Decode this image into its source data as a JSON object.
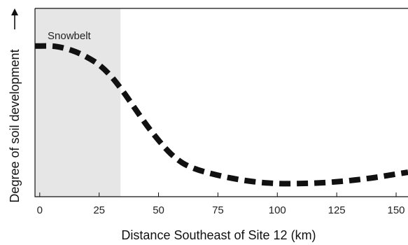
{
  "chart_data": {
    "type": "line",
    "title": "",
    "xlabel": "Distance Southeast of Site 12 (km)",
    "ylabel": "Degree of soil development",
    "xlim": [
      -2,
      155
    ],
    "ylim": [
      0,
      1
    ],
    "x_ticks": [
      "0",
      "25",
      "50",
      "75",
      "100",
      "125",
      "150"
    ],
    "y_ticks": [],
    "y_arrow": "up",
    "grid": false,
    "legend": "none",
    "shaded_region": {
      "label": "Snowbelt",
      "x_from": -2,
      "x_to": 34,
      "color": "#e6e6e6"
    },
    "series": [
      {
        "style": "dashed",
        "color": "#111111",
        "x": [
          -2,
          5,
          10,
          15,
          20,
          25,
          30,
          35,
          40,
          45,
          50,
          55,
          60,
          65,
          70,
          80,
          90,
          100,
          110,
          120,
          130,
          140,
          150,
          155
        ],
        "y": [
          0.8,
          0.8,
          0.79,
          0.77,
          0.74,
          0.7,
          0.64,
          0.56,
          0.47,
          0.38,
          0.3,
          0.23,
          0.18,
          0.15,
          0.13,
          0.1,
          0.08,
          0.07,
          0.07,
          0.075,
          0.085,
          0.1,
          0.12,
          0.13
        ]
      }
    ]
  }
}
